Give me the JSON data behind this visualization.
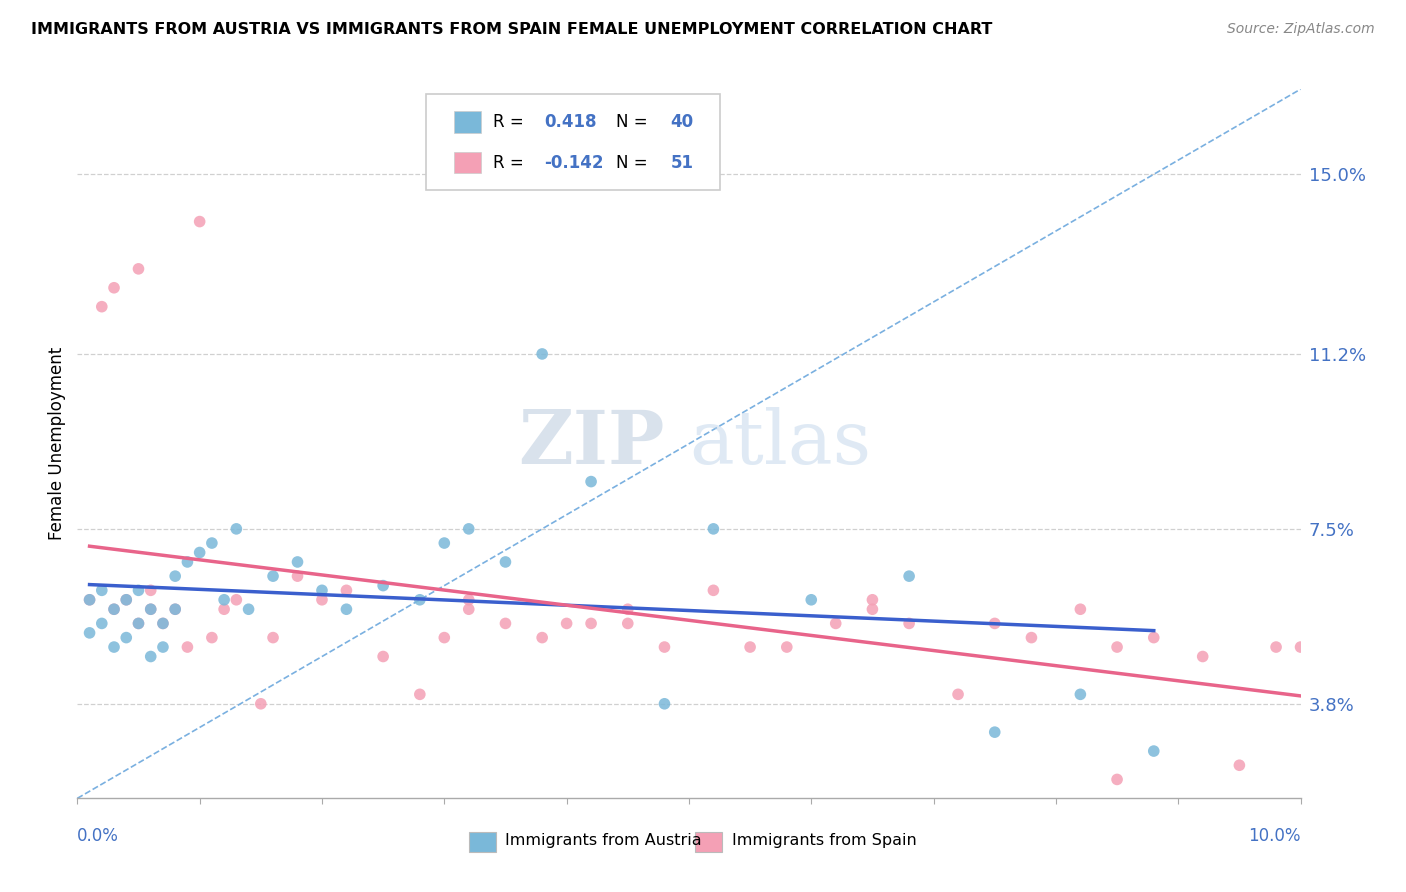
{
  "title": "IMMIGRANTS FROM AUSTRIA VS IMMIGRANTS FROM SPAIN FEMALE UNEMPLOYMENT CORRELATION CHART",
  "source": "Source: ZipAtlas.com",
  "ylabel_label": "Female Unemployment",
  "y_ticks": [
    0.038,
    0.075,
    0.112,
    0.15
  ],
  "y_tick_labels": [
    "3.8%",
    "7.5%",
    "11.2%",
    "15.0%"
  ],
  "x_lim": [
    0.0,
    0.1
  ],
  "y_lim": [
    0.018,
    0.168
  ],
  "austria_color": "#7ab8d9",
  "spain_color": "#f4a0b5",
  "austria_trend_color": "#3a5fcd",
  "spain_trend_color": "#e8648a",
  "ref_line_color": "#7ab0e0",
  "grid_color": "#d0d0d0",
  "austria_R": "0.418",
  "austria_N": "40",
  "spain_R": "-0.142",
  "spain_N": "51",
  "austria_label": "Immigrants from Austria",
  "spain_label": "Immigrants from Spain",
  "austria_x": [
    0.001,
    0.001,
    0.002,
    0.002,
    0.003,
    0.003,
    0.004,
    0.004,
    0.005,
    0.005,
    0.006,
    0.006,
    0.007,
    0.007,
    0.008,
    0.008,
    0.009,
    0.01,
    0.011,
    0.012,
    0.013,
    0.014,
    0.016,
    0.018,
    0.02,
    0.022,
    0.025,
    0.028,
    0.03,
    0.032,
    0.035,
    0.038,
    0.042,
    0.048,
    0.052,
    0.06,
    0.068,
    0.075,
    0.082,
    0.088
  ],
  "austria_y": [
    0.053,
    0.06,
    0.055,
    0.062,
    0.05,
    0.058,
    0.052,
    0.06,
    0.055,
    0.062,
    0.048,
    0.058,
    0.05,
    0.055,
    0.058,
    0.065,
    0.068,
    0.07,
    0.072,
    0.06,
    0.075,
    0.058,
    0.065,
    0.068,
    0.062,
    0.058,
    0.063,
    0.06,
    0.072,
    0.075,
    0.068,
    0.112,
    0.085,
    0.038,
    0.075,
    0.06,
    0.065,
    0.032,
    0.04,
    0.028
  ],
  "spain_x": [
    0.001,
    0.002,
    0.003,
    0.003,
    0.004,
    0.005,
    0.005,
    0.006,
    0.006,
    0.007,
    0.008,
    0.009,
    0.01,
    0.011,
    0.012,
    0.013,
    0.015,
    0.016,
    0.018,
    0.02,
    0.022,
    0.025,
    0.028,
    0.03,
    0.032,
    0.035,
    0.038,
    0.04,
    0.042,
    0.045,
    0.048,
    0.052,
    0.055,
    0.058,
    0.062,
    0.065,
    0.068,
    0.072,
    0.075,
    0.078,
    0.082,
    0.085,
    0.088,
    0.092,
    0.095,
    0.098,
    0.1,
    0.032,
    0.045,
    0.065,
    0.085
  ],
  "spain_y": [
    0.06,
    0.122,
    0.058,
    0.126,
    0.06,
    0.055,
    0.13,
    0.058,
    0.062,
    0.055,
    0.058,
    0.05,
    0.14,
    0.052,
    0.058,
    0.06,
    0.038,
    0.052,
    0.065,
    0.06,
    0.062,
    0.048,
    0.04,
    0.052,
    0.06,
    0.055,
    0.052,
    0.055,
    0.055,
    0.055,
    0.05,
    0.062,
    0.05,
    0.05,
    0.055,
    0.06,
    0.055,
    0.04,
    0.055,
    0.052,
    0.058,
    0.05,
    0.052,
    0.048,
    0.025,
    0.05,
    0.05,
    0.058,
    0.058,
    0.058,
    0.022
  ]
}
